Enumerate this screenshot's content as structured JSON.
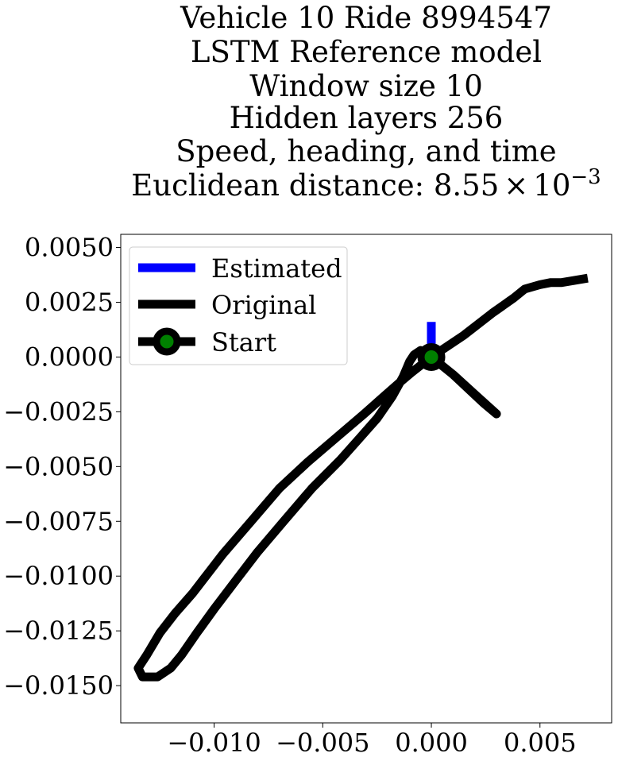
{
  "chart_data": {
    "type": "line",
    "title_lines": [
      "Vehicle 10 Ride 8994547",
      "LSTM Reference model",
      "Window size 10",
      "Hidden layers 256",
      "Speed, heading, and time"
    ],
    "title_distance_prefix": "Euclidean distance: ",
    "title_distance_mantissa": "8.55",
    "title_distance_times": "×",
    "title_distance_base": "10",
    "title_distance_exponent": "−3",
    "xlabel": "",
    "ylabel": "",
    "xlim": [
      -0.0143,
      0.0083
    ],
    "ylim": [
      -0.0167,
      0.0056
    ],
    "x_ticks": [
      -0.01,
      -0.005,
      0.0,
      0.005
    ],
    "x_tick_labels": [
      "−0.010",
      "−0.005",
      "0.000",
      "0.005"
    ],
    "y_ticks": [
      0.005,
      0.0025,
      0.0,
      -0.0025,
      -0.005,
      -0.0075,
      -0.01,
      -0.0125,
      -0.015
    ],
    "y_tick_labels": [
      "0.0050",
      "0.0025",
      "0.0000",
      "−0.0025",
      "−0.0050",
      "−0.0075",
      "−0.0100",
      "−0.0125",
      "−0.0150"
    ],
    "grid": false,
    "legend_position": "top-left",
    "series": [
      {
        "name": "Estimated",
        "color": "#0000ff",
        "points": [
          [
            0.0,
            0.0
          ],
          [
            0.0,
            0.0016
          ]
        ]
      },
      {
        "name": "Original",
        "color": "#000000",
        "points": [
          [
            0.0,
            0.0
          ],
          [
            -0.0009,
            -0.0007
          ],
          [
            -0.0015,
            -0.0012
          ],
          [
            -0.0023,
            -0.0019
          ],
          [
            -0.0031,
            -0.0026
          ],
          [
            -0.0044,
            -0.0037
          ],
          [
            -0.0057,
            -0.0048
          ],
          [
            -0.007,
            -0.006
          ],
          [
            -0.0083,
            -0.0075
          ],
          [
            -0.0096,
            -0.009
          ],
          [
            -0.011,
            -0.0108
          ],
          [
            -0.0118,
            -0.0117
          ],
          [
            -0.0125,
            -0.0126
          ],
          [
            -0.0131,
            -0.0136
          ],
          [
            -0.0135,
            -0.0142
          ],
          [
            -0.0133,
            -0.0146
          ],
          [
            -0.0126,
            -0.0146
          ],
          [
            -0.012,
            -0.0142
          ],
          [
            -0.0115,
            -0.0136
          ],
          [
            -0.0108,
            -0.0126
          ],
          [
            -0.01,
            -0.0115
          ],
          [
            -0.009,
            -0.0102
          ],
          [
            -0.008,
            -0.0089
          ],
          [
            -0.0068,
            -0.0075
          ],
          [
            -0.0055,
            -0.006
          ],
          [
            -0.0042,
            -0.0047
          ],
          [
            -0.0033,
            -0.0037
          ],
          [
            -0.0025,
            -0.0028
          ],
          [
            -0.0018,
            -0.0018
          ],
          [
            -0.0013,
            -0.0009
          ],
          [
            -0.001,
            -0.0002
          ],
          [
            -0.0008,
            0.0001
          ],
          [
            -0.0005,
            0.0003
          ],
          [
            -0.0003,
            0.0002
          ],
          [
            0.0,
            0.0
          ],
          [
            0.001,
            -0.0008
          ],
          [
            0.002,
            -0.0017
          ],
          [
            0.003,
            -0.0026
          ],
          [
            0.0024,
            -0.0021
          ],
          [
            0.001,
            -0.0008
          ],
          [
            0.0,
            0.0
          ],
          [
            0.0015,
            0.001
          ],
          [
            0.0028,
            0.002
          ],
          [
            0.0038,
            0.0027
          ],
          [
            0.0043,
            0.0031
          ],
          [
            0.005,
            0.0033
          ],
          [
            0.0055,
            0.0034
          ],
          [
            0.006,
            0.0034
          ],
          [
            0.0066,
            0.0035
          ],
          [
            0.0072,
            0.0036
          ]
        ]
      },
      {
        "name": "Start",
        "color": "#000000",
        "fill": "#008000",
        "points": [
          [
            0.0,
            0.0
          ]
        ]
      }
    ]
  }
}
